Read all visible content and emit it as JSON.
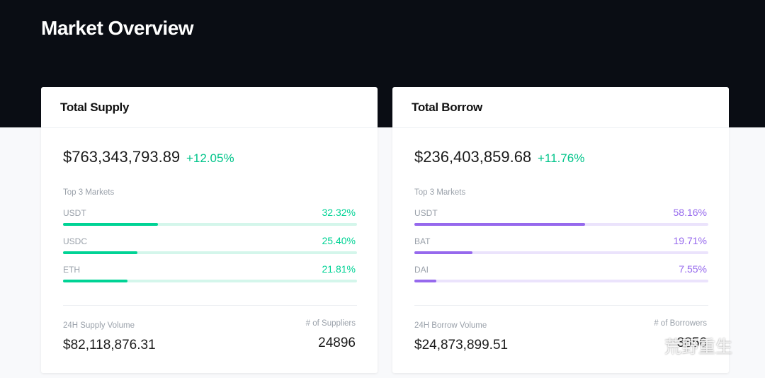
{
  "header": {
    "title": "Market Overview"
  },
  "cards": [
    {
      "title": "Total Supply",
      "amount": "$763,343,793.89",
      "change": "+12.05%",
      "markets_label": "Top 3 Markets",
      "markets": [
        {
          "name": "USDT",
          "share": 32.32,
          "share_label": "32.32%"
        },
        {
          "name": "USDC",
          "share": 25.4,
          "share_label": "25.40%"
        },
        {
          "name": "ETH",
          "share": 21.81,
          "share_label": "21.81%"
        }
      ],
      "volume_label": "24H Supply Volume",
      "volume": "$82,118,876.31",
      "count_label": "# of Suppliers",
      "count": "24896",
      "color": "#00d395",
      "track": "#d4f6eb"
    },
    {
      "title": "Total Borrow",
      "amount": "$236,403,859.68",
      "change": "+11.76%",
      "markets_label": "Top 3 Markets",
      "markets": [
        {
          "name": "USDT",
          "share": 58.16,
          "share_label": "58.16%"
        },
        {
          "name": "BAT",
          "share": 19.71,
          "share_label": "19.71%"
        },
        {
          "name": "DAI",
          "share": 7.55,
          "share_label": "7.55%"
        }
      ],
      "volume_label": "24H Borrow Volume",
      "volume": "$24,873,899.51",
      "count_label": "# of Borrowers",
      "count": "3856",
      "color": "#9669ed",
      "track": "#ebe3fc"
    }
  ],
  "watermark": "荒野重生"
}
